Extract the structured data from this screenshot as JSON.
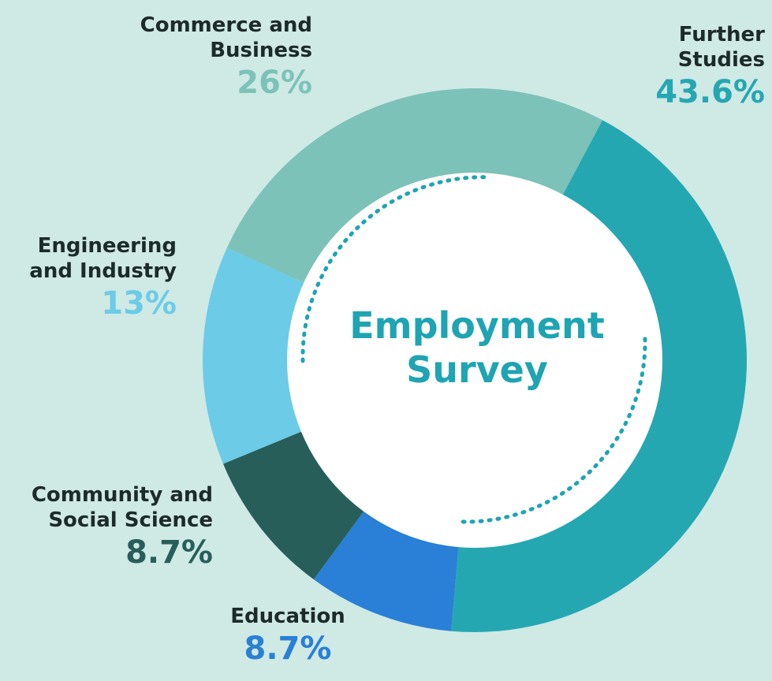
{
  "chart_data": {
    "type": "pie",
    "title": "Employment\nSurvey",
    "slices": [
      {
        "label": "Further\nStudies",
        "value": 43.6,
        "display": "43.6%",
        "color": "#25a7b2"
      },
      {
        "label": "Education",
        "value": 8.7,
        "display": "8.7%",
        "color": "#2a7fd6"
      },
      {
        "label": "Community and\nSocial Science",
        "value": 8.7,
        "display": "8.7%",
        "color": "#275e5a"
      },
      {
        "label": "Engineering\nand Industry",
        "value": 13,
        "display": "13%",
        "color": "#6ccbe6"
      },
      {
        "label": "Commerce and\nBusiness",
        "value": 26,
        "display": "26%",
        "color": "#7cc2b9"
      }
    ],
    "label_colors": [
      "#25a7b2",
      "#2a7fd6",
      "#275e5a",
      "#6ccbe6",
      "#7cc2b9"
    ]
  }
}
